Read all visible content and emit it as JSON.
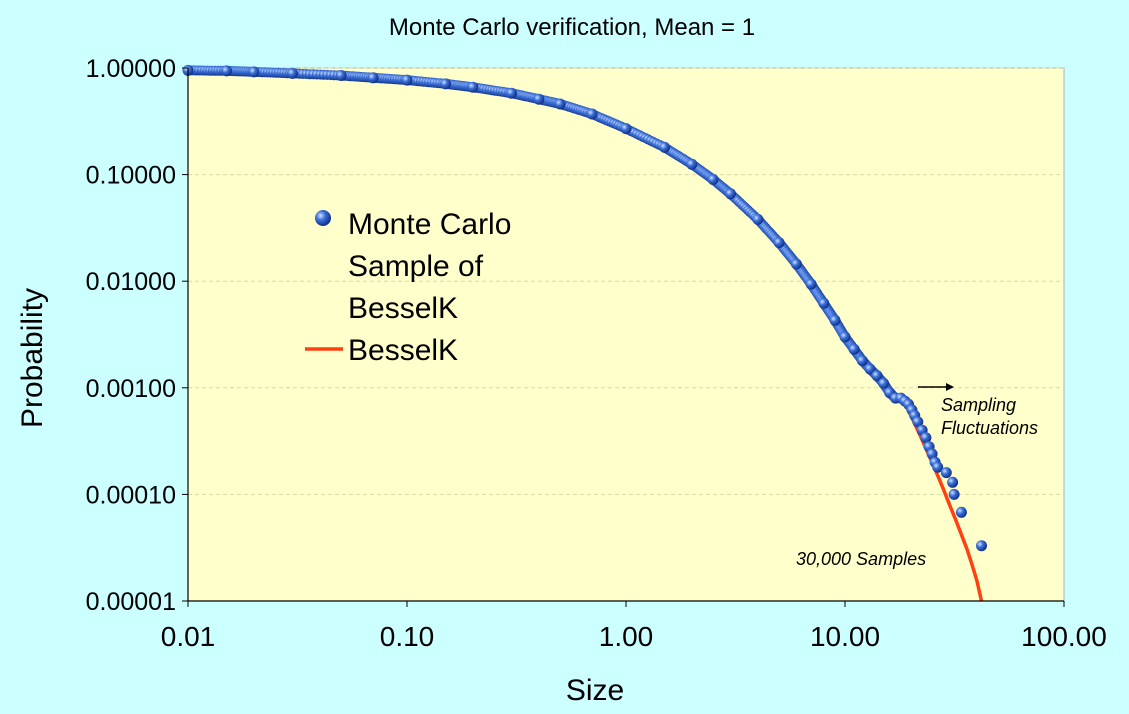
{
  "chart_data": {
    "type": "scatter",
    "title": "Monte Carlo verification, Mean = 1",
    "xlabel": "Size",
    "ylabel": "Probability",
    "x_scale": "log",
    "y_scale": "log",
    "xlim": [
      0.01,
      100
    ],
    "ylim": [
      1e-05,
      1
    ],
    "x_ticks": [
      "0.01",
      "0.10",
      "1.00",
      "10.00",
      "100.00"
    ],
    "y_ticks": [
      "1.00000",
      "0.10000",
      "0.01000",
      "0.00100",
      "0.00010",
      "0.00001"
    ],
    "grid": "horizontal dashed",
    "legend_position": "left",
    "series": [
      {
        "name": "Monte Carlo Sample of BesselK",
        "legend_lines": [
          "Monte Carlo",
          "Sample of",
          "BesselK"
        ],
        "kind": "scatter",
        "color": "#3a6fd8",
        "x": [
          0.01,
          0.015,
          0.02,
          0.03,
          0.05,
          0.07,
          0.1,
          0.15,
          0.2,
          0.3,
          0.4,
          0.5,
          0.7,
          1.0,
          1.5,
          2.0,
          2.5,
          3.0,
          4.0,
          5.0,
          6.0,
          7.0,
          8.0,
          9.0,
          10.0,
          11.0,
          12.0,
          13.0,
          14.0,
          15.0,
          16.0,
          17.0,
          18.0,
          18.8,
          19.5,
          20.2,
          20.8,
          21.5,
          22.5,
          23.4,
          24.2,
          25.0,
          25.8,
          26.5,
          29.0,
          31.0,
          31.5,
          34.0,
          42.0
        ],
        "y": [
          0.95,
          0.94,
          0.92,
          0.89,
          0.85,
          0.81,
          0.77,
          0.71,
          0.66,
          0.58,
          0.51,
          0.46,
          0.37,
          0.27,
          0.18,
          0.125,
          0.09,
          0.066,
          0.038,
          0.023,
          0.0145,
          0.0094,
          0.0062,
          0.0043,
          0.003,
          0.0023,
          0.0018,
          0.0015,
          0.0013,
          0.0011,
          0.0009,
          0.0008,
          0.0008,
          0.00075,
          0.0007,
          0.00062,
          0.00055,
          0.00048,
          0.0004,
          0.00034,
          0.00028,
          0.00024,
          0.0002,
          0.00018,
          0.00016,
          0.00013,
          0.0001,
          6.8e-05,
          3.3e-05
        ]
      },
      {
        "name": "BesselK",
        "kind": "line",
        "color": "#ff4010",
        "x": [
          18,
          20,
          22,
          24,
          26,
          28,
          30,
          32,
          34,
          36,
          38,
          40,
          42
        ],
        "y": [
          0.00085,
          0.00055,
          0.00036,
          0.00024,
          0.000165,
          0.000115,
          8e-05,
          5.8e-05,
          4.2e-05,
          3.1e-05,
          2.2e-05,
          1.55e-05,
          1e-05
        ]
      }
    ],
    "annotations": [
      {
        "text_lines": [
          "Sampling",
          "Fluctuations"
        ],
        "x": 20,
        "y": 0.0008,
        "arrow": true
      },
      {
        "text_lines": [
          "30,000 Samples"
        ],
        "x": 17,
        "y": 4e-05
      }
    ]
  }
}
